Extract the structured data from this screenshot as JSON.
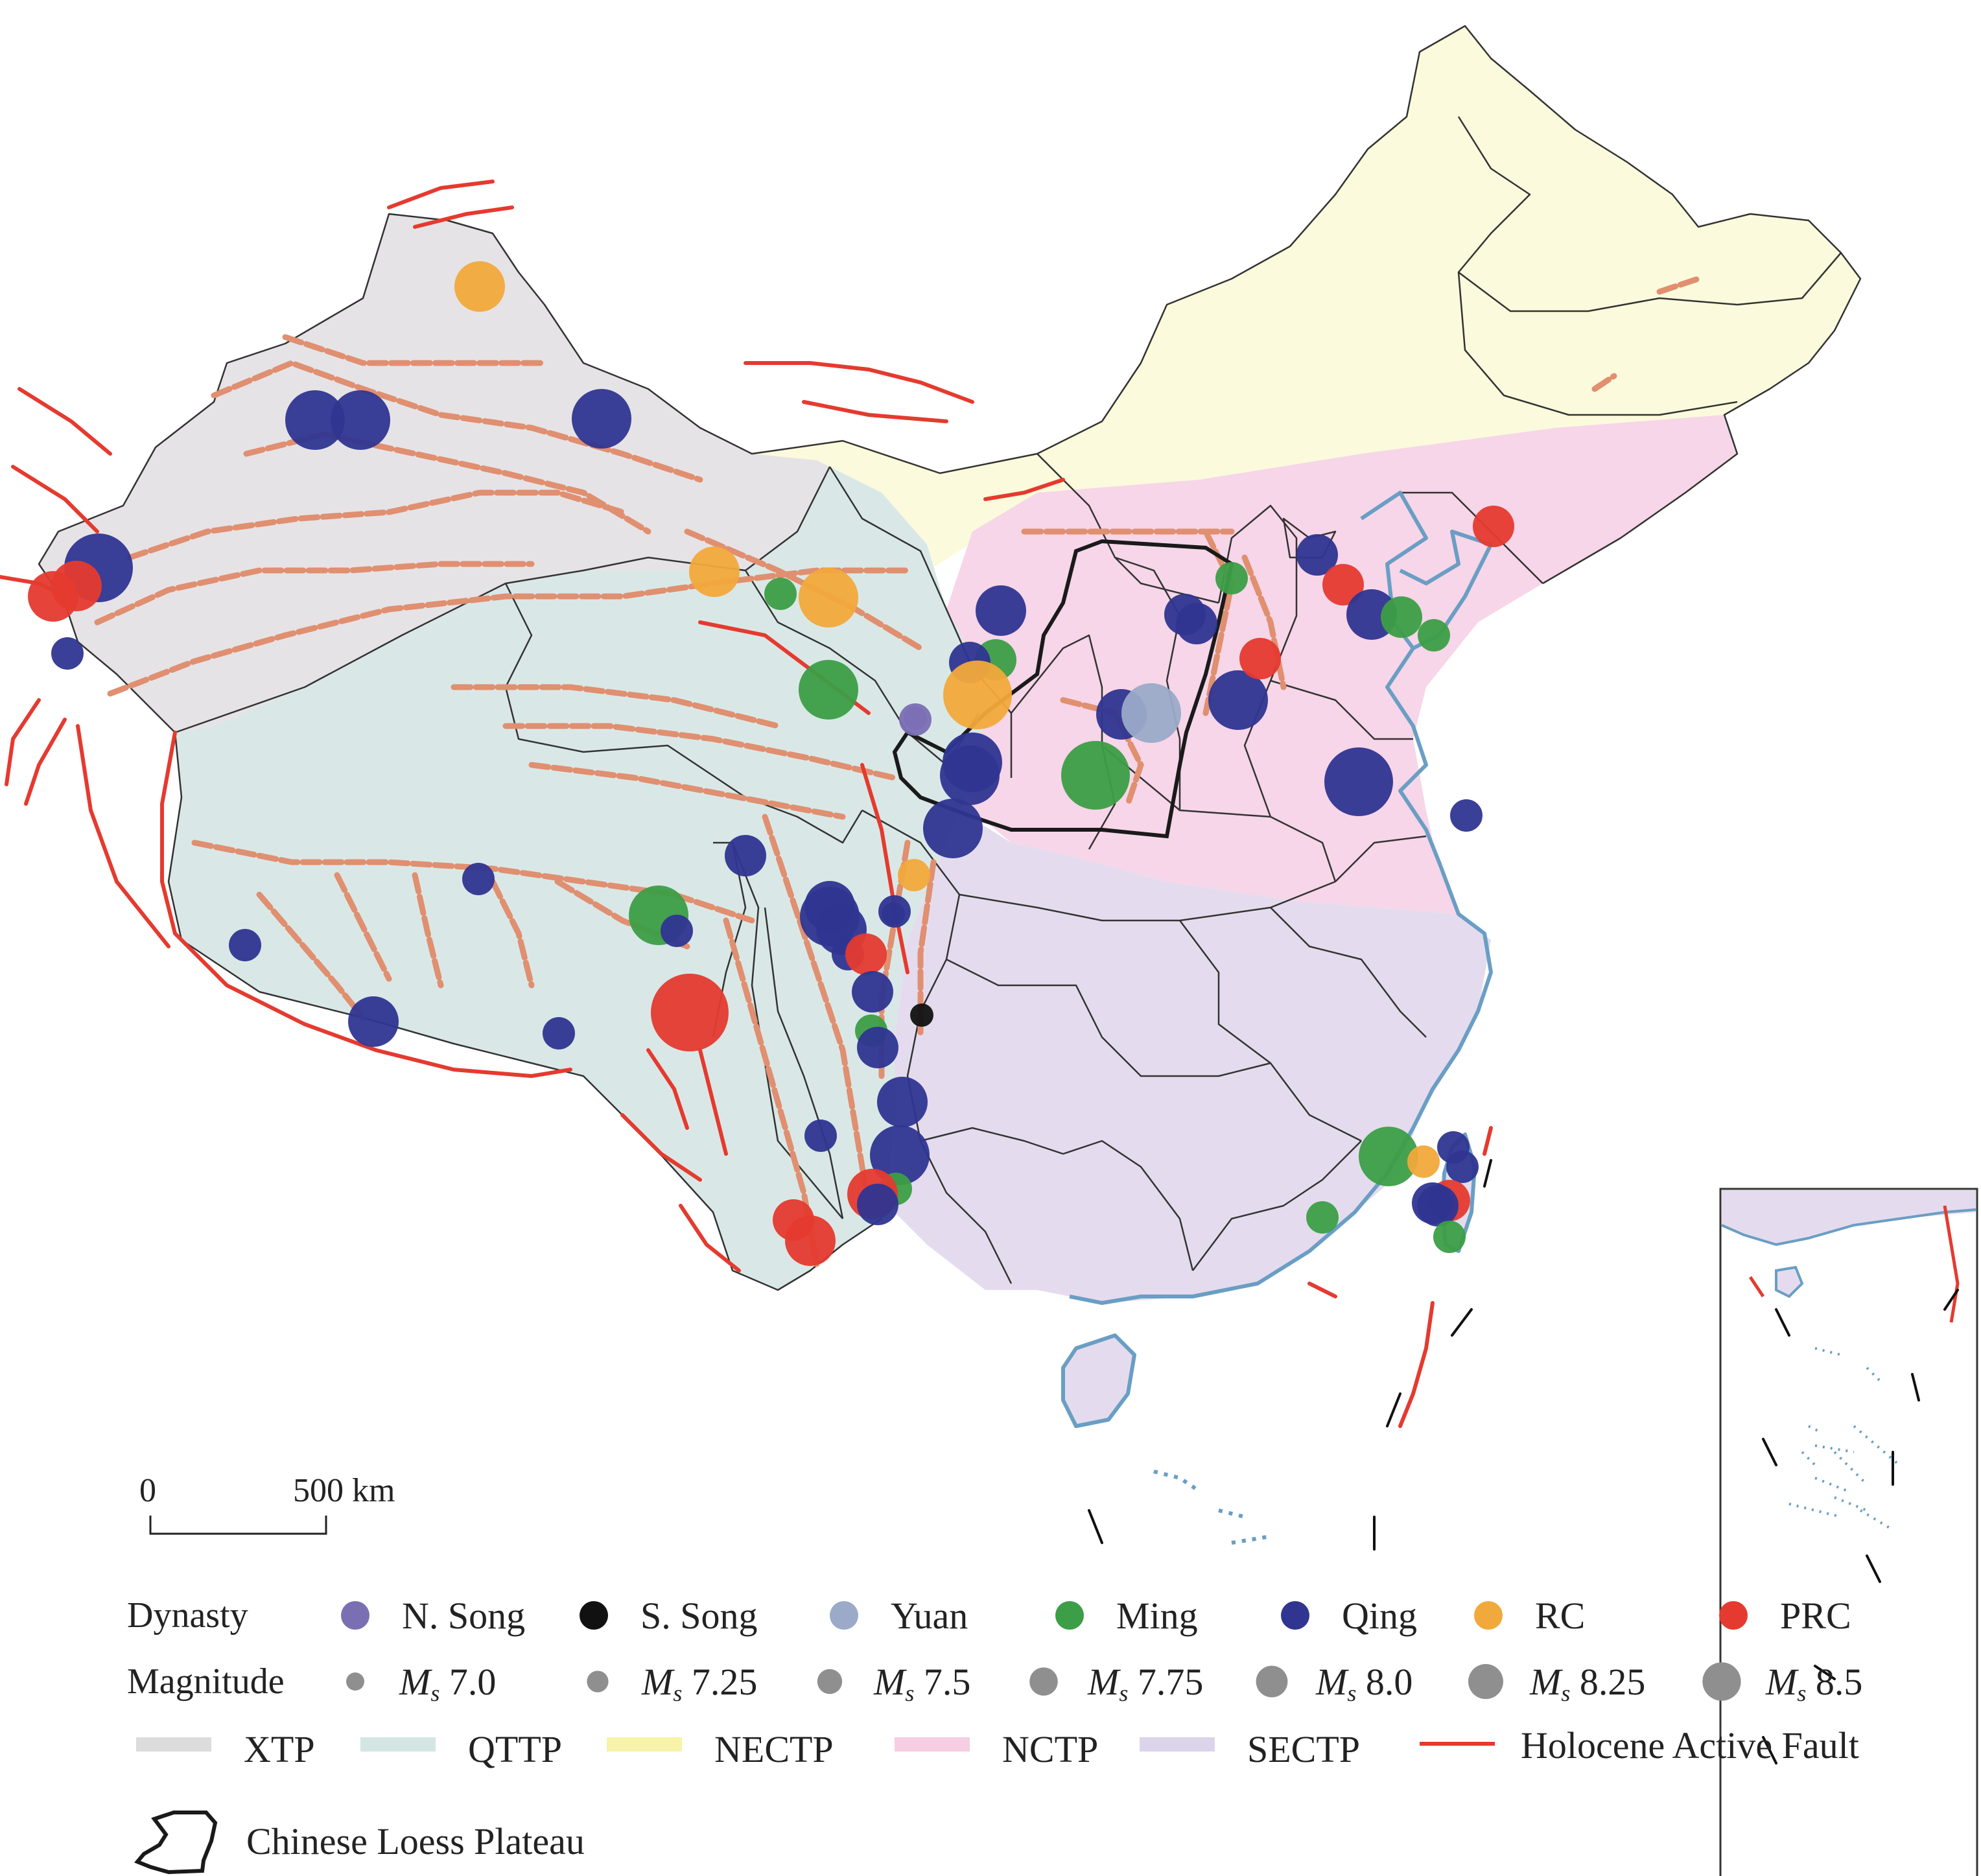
{
  "scale_bar": {
    "zero": "0",
    "value": "500",
    "unit": "km"
  },
  "legend": {
    "dynasty_title": "Dynasty",
    "dynasties": [
      {
        "label": "N. Song",
        "color": "#7b6fb4"
      },
      {
        "label": "S. Song",
        "color": "#111111"
      },
      {
        "label": "Yuan",
        "color": "#9aaac8"
      },
      {
        "label": "Ming",
        "color": "#3c9e46"
      },
      {
        "label": "Qing",
        "color": "#2f3591"
      },
      {
        "label": "RC",
        "color": "#f2a93b"
      },
      {
        "label": "PRC",
        "color": "#e53a2f"
      }
    ],
    "magnitude_title": "Magnitude",
    "magnitude_prefix": "M",
    "magnitude_subscript": "s",
    "magnitudes": [
      "7.0",
      "7.25",
      "7.5",
      "7.75",
      "8.0",
      "8.25",
      "8.5"
    ],
    "magnitude_color": "#8f8f8f",
    "zones": [
      {
        "label": "XTP",
        "color": "#dcdcdc"
      },
      {
        "label": "QTTP",
        "color": "#d3e6e4"
      },
      {
        "label": "NECTP",
        "color": "#f7f3a8"
      },
      {
        "label": "NCTP",
        "color": "#f6cde3"
      },
      {
        "label": "SECTP",
        "color": "#dcd4ea"
      }
    ],
    "fault_label": "Holocene Active Fault",
    "fault_color": "#e53a2f",
    "loess_label": "Chinese Loess Plateau"
  },
  "zone_fill_colors": {
    "XTP": "#e6e3e6",
    "QTTP": "#d9e8e6",
    "NECTP": "#fbfadc",
    "NCTP": "#f6d6e8",
    "SECTP": "#e4dcee"
  },
  "coast_color": "#6a9ec4",
  "fault_zone_color": "#e08f70",
  "earthquakes": [
    {
      "d": "RC",
      "m": "7.75"
    },
    {
      "d": "Qing",
      "m": "8.0"
    },
    {
      "d": "Qing",
      "m": "8.0"
    },
    {
      "d": "Qing",
      "m": "8.0"
    },
    {
      "d": "Qing",
      "m": "8.25"
    },
    {
      "d": "PRC",
      "m": "7.75"
    },
    {
      "d": "PRC",
      "m": "7.75"
    },
    {
      "d": "Qing",
      "m": "7.25"
    },
    {
      "d": "RC",
      "m": "7.75"
    },
    {
      "d": "Ming",
      "m": "7.25"
    },
    {
      "d": "RC",
      "m": "8.0"
    },
    {
      "d": "Ming",
      "m": "8.0"
    },
    {
      "d": "N. Song",
      "m": "7.25"
    },
    {
      "d": "Qing",
      "m": "7.75"
    },
    {
      "d": "Ming",
      "m": "7.5"
    },
    {
      "d": "Qing",
      "m": "7.5"
    },
    {
      "d": "RC",
      "m": "8.25"
    },
    {
      "d": "Qing",
      "m": "8.0"
    },
    {
      "d": "Qing",
      "m": "8.0"
    },
    {
      "d": "Qing",
      "m": "8.0"
    },
    {
      "d": "Ming",
      "m": "8.25"
    },
    {
      "d": "Qing",
      "m": "7.75"
    },
    {
      "d": "Yuan",
      "m": "8.0"
    },
    {
      "d": "Qing",
      "m": "7.5"
    },
    {
      "d": "Qing",
      "m": "7.5"
    },
    {
      "d": "Ming",
      "m": "7.25"
    },
    {
      "d": "Qing",
      "m": "8.0"
    },
    {
      "d": "N. Song",
      "m": "7.0"
    },
    {
      "d": "PRC",
      "m": "7.5"
    },
    {
      "d": "Qing",
      "m": "7.5"
    },
    {
      "d": "PRC",
      "m": "7.5"
    },
    {
      "d": "Qing",
      "m": "7.75"
    },
    {
      "d": "Ming",
      "m": "7.5"
    },
    {
      "d": "Ming",
      "m": "7.25"
    },
    {
      "d": "Qing",
      "m": "8.25"
    },
    {
      "d": "PRC",
      "m": "7.5"
    },
    {
      "d": "Qing",
      "m": "7.25"
    },
    {
      "d": "Qing",
      "m": "7.5"
    },
    {
      "d": "Qing",
      "m": "7.25"
    },
    {
      "d": "Qing",
      "m": "7.25"
    },
    {
      "d": "Ming",
      "m": "8.0"
    },
    {
      "d": "Qing",
      "m": "7.25"
    },
    {
      "d": "Qing",
      "m": "7.0"
    },
    {
      "d": "Qing",
      "m": "8.0"
    },
    {
      "d": "PRC",
      "m": "8.5"
    },
    {
      "d": "Qing",
      "m": "7.75"
    },
    {
      "d": "Qing",
      "m": "7.25"
    },
    {
      "d": "Qing",
      "m": "7.75"
    },
    {
      "d": "Qing",
      "m": "7.75"
    },
    {
      "d": "Qing",
      "m": "7.25"
    },
    {
      "d": "RC",
      "m": "7.25"
    },
    {
      "d": "Qing",
      "m": "7.25"
    },
    {
      "d": "PRC",
      "m": "7.5"
    },
    {
      "d": "Qing",
      "m": "7.5"
    },
    {
      "d": "S. Song",
      "m": "7.0"
    },
    {
      "d": "Ming",
      "m": "7.25"
    },
    {
      "d": "Qing",
      "m": "7.5"
    },
    {
      "d": "Qing",
      "m": "7.75"
    },
    {
      "d": "Qing",
      "m": "7.25"
    },
    {
      "d": "Qing",
      "m": "8.0"
    },
    {
      "d": "Ming",
      "m": "7.25"
    },
    {
      "d": "PRC",
      "m": "7.75"
    },
    {
      "d": "Qing",
      "m": "7.5"
    },
    {
      "d": "PRC",
      "m": "7.5"
    },
    {
      "d": "PRC",
      "m": "7.75"
    },
    {
      "d": "Ming",
      "m": "8.0"
    },
    {
      "d": "RC",
      "m": "7.25"
    },
    {
      "d": "Qing",
      "m": "7.25"
    },
    {
      "d": "Qing",
      "m": "7.25"
    },
    {
      "d": "PRC",
      "m": "7.5"
    },
    {
      "d": "Qing",
      "m": "7.5"
    },
    {
      "d": "Qing",
      "m": "7.5"
    },
    {
      "d": "Ming",
      "m": "7.25"
    },
    {
      "d": "Ming",
      "m": "7.25"
    }
  ]
}
